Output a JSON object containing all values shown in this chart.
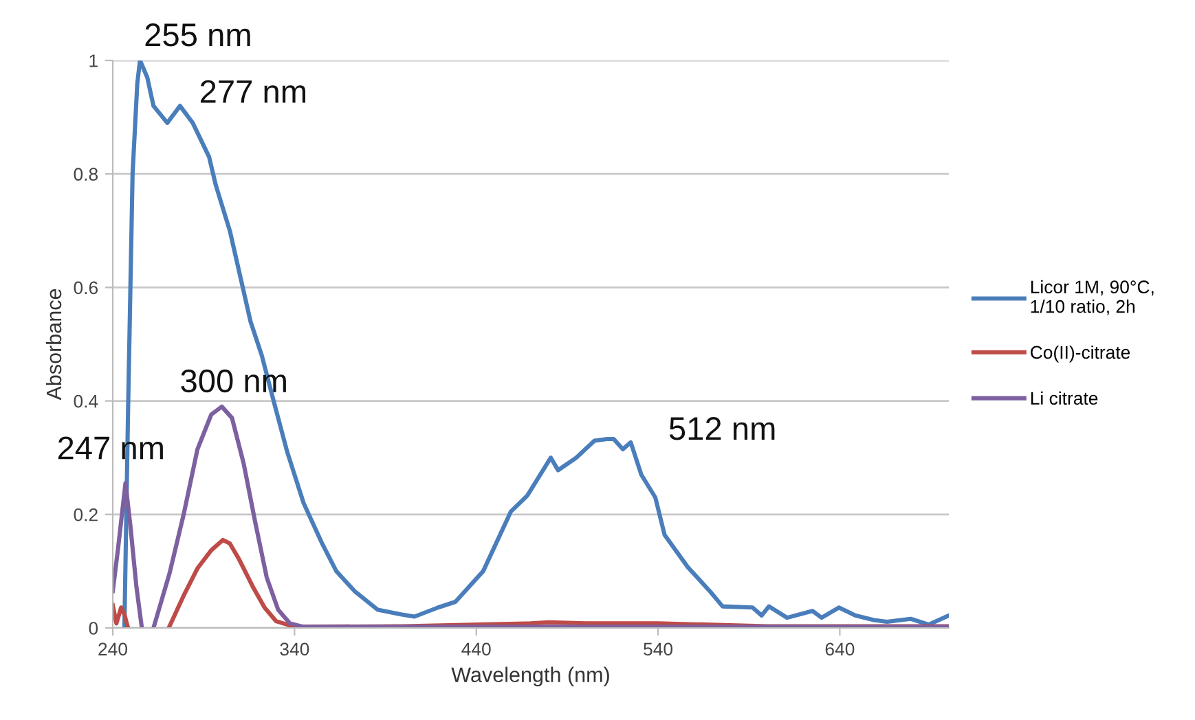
{
  "chart_data": {
    "type": "line",
    "xlabel": "Wavelength (nm)",
    "ylabel": "Absorbance",
    "xlim": [
      240,
      700
    ],
    "xticks": [
      240,
      340,
      440,
      540,
      640
    ],
    "ylim": [
      0,
      1
    ],
    "yticks": [
      0,
      0.2,
      0.4,
      0.6,
      0.8,
      1
    ],
    "grid": "y",
    "legend": "right",
    "marker": "none",
    "line_style": "solid",
    "series": [
      {
        "name": "Licor 1M, 90°C, 1/10 ratio, 2h",
        "color": "#4a7ebb",
        "x": [
          246.4,
          248.4,
          250.9,
          253.5,
          255,
          259,
          262.4,
          270,
          277,
          284,
          293,
          296.7,
          304.4,
          315.8,
          322,
          328.5,
          336,
          345,
          355,
          363,
          373,
          385.8,
          398.5,
          406,
          419,
          428.5,
          443.8,
          459,
          468,
          481,
          485,
          495,
          505,
          512,
          515.6,
          520.6,
          525,
          530.8,
          538.5,
          543.6,
          556.4,
          569,
          575.5,
          592,
          597,
          601,
          611,
          625,
          630,
          639.5,
          648.5,
          658.7,
          666,
          679,
          689,
          700
        ],
        "values": [
          0.0,
          0.38,
          0.8,
          0.96,
          1.0,
          0.97,
          0.92,
          0.89,
          0.92,
          0.89,
          0.83,
          0.78,
          0.7,
          0.54,
          0.48,
          0.4,
          0.31,
          0.22,
          0.15,
          0.1,
          0.065,
          0.032,
          0.024,
          0.02,
          0.036,
          0.046,
          0.1,
          0.205,
          0.233,
          0.3,
          0.278,
          0.3,
          0.33,
          0.333,
          0.333,
          0.315,
          0.327,
          0.27,
          0.23,
          0.164,
          0.107,
          0.063,
          0.038,
          0.036,
          0.022,
          0.038,
          0.018,
          0.03,
          0.018,
          0.036,
          0.022,
          0.014,
          0.011,
          0.016,
          0.006,
          0.022
        ]
      },
      {
        "name": "Co(II)-citrate",
        "color": "#be4b48",
        "x": [
          240,
          242,
          244.6,
          246.4,
          248.4,
          260,
          270.8,
          279,
          286.6,
          294.2,
          300.6,
          304.4,
          309.5,
          317,
          323.5,
          329.8,
          340,
          400,
          470,
          480,
          500,
          540,
          600,
          700
        ],
        "values": [
          0.04,
          0.008,
          0.036,
          0.024,
          0,
          null,
          0,
          0.057,
          0.105,
          0.137,
          0.155,
          0.149,
          0.121,
          0.073,
          0.036,
          0.012,
          0.002,
          0.003,
          0.008,
          0.01,
          0.008,
          0.008,
          0.003,
          0.003
        ]
      },
      {
        "name": "Li citrate",
        "color": "#7d60a0",
        "x": [
          240,
          242.8,
          247,
          249.7,
          253,
          256,
          259,
          262.4,
          271.3,
          279,
          286.6,
          294.2,
          300,
          305.6,
          312,
          318.4,
          324.7,
          331,
          337.5,
          345,
          700
        ],
        "values": [
          0.065,
          0.137,
          0.255,
          0.18,
          0.073,
          0,
          null,
          0,
          0.097,
          0.2,
          0.315,
          0.376,
          0.39,
          0.37,
          0.29,
          0.186,
          0.089,
          0.032,
          0.008,
          0.002,
          0.002
        ]
      }
    ],
    "annotations": [
      {
        "text": "255 nm",
        "x": 255,
        "y": 1.0
      },
      {
        "text": "277 nm",
        "x": 277,
        "y": 0.92
      },
      {
        "text": "300 nm",
        "x": 300,
        "y": 0.39
      },
      {
        "text": "247 nm",
        "x": 247,
        "y": 0.255
      },
      {
        "text": "512 nm",
        "x": 512,
        "y": 0.333
      }
    ]
  }
}
